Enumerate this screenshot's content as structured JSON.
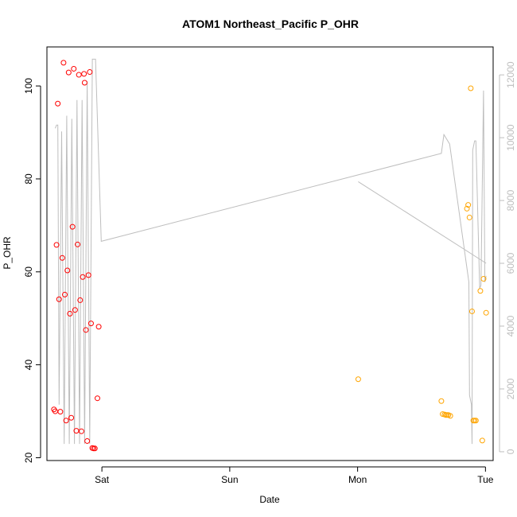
{
  "chart_data": {
    "type": "scatter",
    "title": "ATOM1 Northeast_Pacific P_OHR",
    "xlabel": "Date",
    "ylabel": "P_OHR",
    "x_axis": {
      "unit": "days",
      "ticks": [
        {
          "value": 1.0,
          "label": "Sat"
        },
        {
          "value": 2.0,
          "label": "Sun"
        },
        {
          "value": 3.0,
          "label": "Mon"
        },
        {
          "value": 4.0,
          "label": "Tue"
        }
      ],
      "range": [
        0.57,
        4.06
      ]
    },
    "y_axis": {
      "range": [
        19.4,
        108.4
      ],
      "ticks": [
        20,
        40,
        60,
        80,
        100
      ]
    },
    "y2_axis": {
      "range": [
        -280,
        12890
      ],
      "ticks": [
        0,
        2000,
        4000,
        6000,
        8000,
        10000,
        12000
      ],
      "color": "#bebebe"
    },
    "grid": false,
    "legend": "none",
    "series": [
      {
        "marker": "circle-open",
        "color": "#ff0000",
        "points": [
          {
            "x": 0.625,
            "y": 30.4
          },
          {
            "x": 0.635,
            "y": 30.0
          },
          {
            "x": 0.645,
            "y": 65.8
          },
          {
            "x": 0.655,
            "y": 96.2
          },
          {
            "x": 0.665,
            "y": 54.1
          },
          {
            "x": 0.675,
            "y": 29.9
          },
          {
            "x": 0.69,
            "y": 63.0
          },
          {
            "x": 0.7,
            "y": 105.0
          },
          {
            "x": 0.71,
            "y": 55.1
          },
          {
            "x": 0.72,
            "y": 28.0
          },
          {
            "x": 0.73,
            "y": 60.3
          },
          {
            "x": 0.74,
            "y": 102.9
          },
          {
            "x": 0.75,
            "y": 51.0
          },
          {
            "x": 0.76,
            "y": 28.6
          },
          {
            "x": 0.77,
            "y": 69.7
          },
          {
            "x": 0.78,
            "y": 103.7
          },
          {
            "x": 0.79,
            "y": 51.8
          },
          {
            "x": 0.8,
            "y": 25.8
          },
          {
            "x": 0.81,
            "y": 65.9
          },
          {
            "x": 0.82,
            "y": 102.4
          },
          {
            "x": 0.83,
            "y": 53.9
          },
          {
            "x": 0.84,
            "y": 25.7
          },
          {
            "x": 0.85,
            "y": 58.9
          },
          {
            "x": 0.86,
            "y": 102.6
          },
          {
            "x": 0.865,
            "y": 100.7
          },
          {
            "x": 0.875,
            "y": 47.5
          },
          {
            "x": 0.885,
            "y": 23.6
          },
          {
            "x": 0.895,
            "y": 59.3
          },
          {
            "x": 0.905,
            "y": 103.0
          },
          {
            "x": 0.915,
            "y": 48.9
          },
          {
            "x": 0.925,
            "y": 22.1
          },
          {
            "x": 0.935,
            "y": 22.0
          },
          {
            "x": 0.945,
            "y": 22.0
          },
          {
            "x": 0.965,
            "y": 32.8
          },
          {
            "x": 0.975,
            "y": 48.2
          }
        ]
      },
      {
        "marker": "circle-open",
        "color": "#ffa500",
        "points": [
          {
            "x": 3.005,
            "y": 36.9
          },
          {
            "x": 3.655,
            "y": 32.2
          },
          {
            "x": 3.665,
            "y": 29.4
          },
          {
            "x": 3.68,
            "y": 29.3
          },
          {
            "x": 3.69,
            "y": 29.2
          },
          {
            "x": 3.7,
            "y": 29.2
          },
          {
            "x": 3.71,
            "y": 29.2
          },
          {
            "x": 3.725,
            "y": 29.0
          },
          {
            "x": 3.855,
            "y": 73.6
          },
          {
            "x": 3.865,
            "y": 74.4
          },
          {
            "x": 3.875,
            "y": 71.7
          },
          {
            "x": 3.885,
            "y": 99.5
          },
          {
            "x": 3.895,
            "y": 51.5
          },
          {
            "x": 3.905,
            "y": 28.0
          },
          {
            "x": 3.915,
            "y": 28.0
          },
          {
            "x": 3.925,
            "y": 28.0
          },
          {
            "x": 3.96,
            "y": 55.9
          },
          {
            "x": 3.975,
            "y": 23.7
          },
          {
            "x": 3.985,
            "y": 58.5
          },
          {
            "x": 4.005,
            "y": 51.2
          }
        ]
      },
      {
        "type": "line",
        "axis": "y2",
        "color": "#bebebe",
        "points": [
          {
            "x": 0.635,
            "y": 10300
          },
          {
            "x": 0.645,
            "y": 10400
          },
          {
            "x": 0.655,
            "y": 10400
          },
          {
            "x": 0.665,
            "y": 1500
          },
          {
            "x": 0.685,
            "y": 10200
          },
          {
            "x": 0.705,
            "y": 250
          },
          {
            "x": 0.725,
            "y": 10700
          },
          {
            "x": 0.745,
            "y": 250
          },
          {
            "x": 0.765,
            "y": 10600
          },
          {
            "x": 0.785,
            "y": 250
          },
          {
            "x": 0.805,
            "y": 11200
          },
          {
            "x": 0.825,
            "y": 250
          },
          {
            "x": 0.845,
            "y": 11200
          },
          {
            "x": 0.865,
            "y": 250
          },
          {
            "x": 0.885,
            "y": 11800
          },
          {
            "x": 0.905,
            "y": 250
          },
          {
            "x": 0.925,
            "y": 12500
          },
          {
            "x": 0.95,
            "y": 12500
          },
          {
            "x": 0.995,
            "y": 6700
          },
          {
            "x": 3.655,
            "y": 9500
          },
          {
            "x": 3.675,
            "y": 10100
          },
          {
            "x": 3.72,
            "y": 9800
          },
          {
            "x": 3.87,
            "y": 5400
          },
          {
            "x": 3.875,
            "y": 1800
          },
          {
            "x": 3.89,
            "y": 1500
          },
          {
            "x": 3.895,
            "y": 250
          },
          {
            "x": 3.9,
            "y": 9600
          },
          {
            "x": 3.915,
            "y": 9900
          },
          {
            "x": 3.925,
            "y": 9900
          },
          {
            "x": 3.955,
            "y": 5200
          },
          {
            "x": 3.965,
            "y": 5300
          },
          {
            "x": 3.985,
            "y": 11500
          },
          {
            "x": 3.995,
            "y": 5400
          },
          {
            "x": 4.005,
            "y": 5600
          }
        ]
      },
      {
        "type": "line",
        "axis": "y2",
        "color": "#bebebe",
        "points": [
          {
            "x": 3.005,
            "y": 8600
          },
          {
            "x": 4.005,
            "y": 6000
          }
        ]
      }
    ]
  }
}
